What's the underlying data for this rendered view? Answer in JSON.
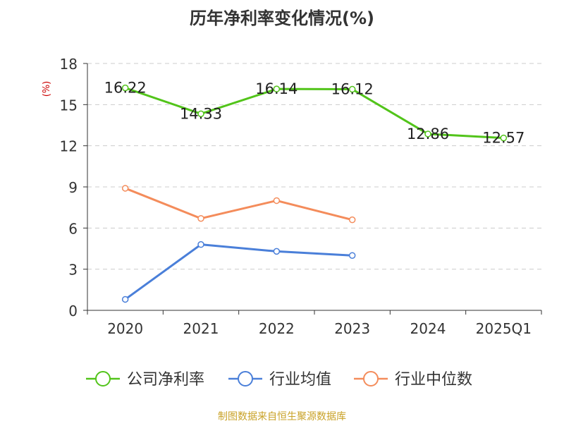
{
  "chart_data": {
    "type": "line",
    "title": "历年净利率变化情况(%)",
    "ylabel": "(%)",
    "xlabel": "",
    "categories": [
      "2020",
      "2021",
      "2022",
      "2023",
      "2024",
      "2025Q1"
    ],
    "ylim": [
      0,
      18
    ],
    "yticks": [
      0,
      3,
      6,
      9,
      12,
      15,
      18
    ],
    "grid": true,
    "legend_position": "bottom",
    "series": [
      {
        "name": "公司净利率",
        "color": "#52c41a",
        "values": [
          16.22,
          14.33,
          16.14,
          16.12,
          12.86,
          12.57
        ],
        "labels": [
          "16.22",
          "14.33",
          "16.14",
          "16.12",
          "12.86",
          "12.57"
        ]
      },
      {
        "name": "行业均值",
        "color": "#4a7fd9",
        "values": [
          0.8,
          4.8,
          4.3,
          4.0,
          null,
          null
        ]
      },
      {
        "name": "行业中位数",
        "color": "#f48c5b",
        "values": [
          8.9,
          6.7,
          8.0,
          6.6,
          null,
          null
        ]
      }
    ]
  },
  "footer": {
    "source": "制图数据来自恒生聚源数据库"
  }
}
